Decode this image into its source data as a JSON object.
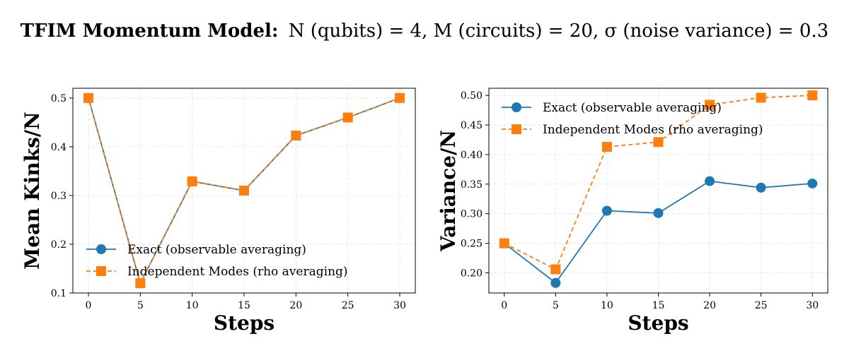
{
  "title": {
    "bold": "TFIM Momentum Model:",
    "rest": "N (qubits) = 4, M (circuits) = 20, σ (noise variance) = 0.3"
  },
  "colors": {
    "exact": "#1f77b4",
    "independent": "#ff7f0e",
    "grid": "#e0e0e0"
  },
  "chart_data": [
    {
      "type": "line",
      "xlabel": "Steps",
      "ylabel": "Mean Kinks/N",
      "x": [
        0,
        5,
        10,
        15,
        20,
        25,
        30
      ],
      "xlim": [
        -1.5,
        31.5
      ],
      "ylim": [
        0.1,
        0.52
      ],
      "xticks": [
        "0",
        "5",
        "10",
        "15",
        "20",
        "25",
        "30"
      ],
      "yticks": [
        "0.1",
        "0.2",
        "0.3",
        "0.4",
        "0.5"
      ],
      "grid": true,
      "legend_position": "lower-left",
      "series": [
        {
          "name": "Exact (observable averaging)",
          "style": "solid-circle",
          "values": [
            0.5,
            0.12,
            0.329,
            0.31,
            0.423,
            0.46,
            0.5
          ]
        },
        {
          "name": "Independent Modes (rho averaging)",
          "style": "dashed-square",
          "values": [
            0.5,
            0.12,
            0.329,
            0.31,
            0.423,
            0.46,
            0.5
          ]
        }
      ]
    },
    {
      "type": "line",
      "xlabel": "Steps",
      "ylabel": "Variance/N",
      "x": [
        0,
        5,
        10,
        15,
        20,
        25,
        30
      ],
      "xlim": [
        -1.5,
        31.5
      ],
      "ylim": [
        0.166,
        0.512
      ],
      "xticks": [
        "0",
        "5",
        "10",
        "15",
        "20",
        "25",
        "30"
      ],
      "yticks": [
        "0.20",
        "0.25",
        "0.30",
        "0.35",
        "0.40",
        "0.45",
        "0.50"
      ],
      "grid": true,
      "legend_position": "upper-left",
      "series": [
        {
          "name": "Exact (observable averaging)",
          "style": "solid-circle",
          "values": [
            0.25,
            0.183,
            0.305,
            0.301,
            0.355,
            0.344,
            0.351
          ]
        },
        {
          "name": "Independent Modes (rho averaging)",
          "style": "dashed-square",
          "values": [
            0.25,
            0.206,
            0.413,
            0.421,
            0.484,
            0.496,
            0.5
          ]
        }
      ]
    }
  ]
}
